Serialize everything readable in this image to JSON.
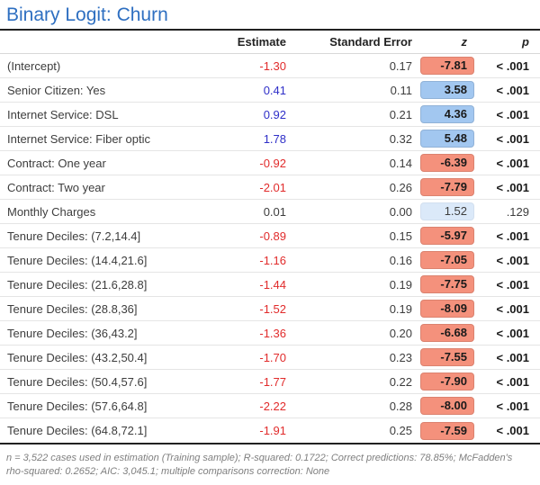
{
  "title": "Binary Logit: Churn",
  "columns": {
    "estimate": "Estimate",
    "standard_error": "Standard Error",
    "z": "z",
    "p": "p"
  },
  "rows": [
    {
      "label": "(Intercept)",
      "estimate": "-1.30",
      "est_tone": "neg",
      "se": "0.17",
      "z": "-7.81",
      "z_tone": "neg",
      "sig": true,
      "p": "< .001"
    },
    {
      "label": "Senior Citizen: Yes",
      "estimate": "0.41",
      "est_tone": "pos",
      "se": "0.11",
      "z": "3.58",
      "z_tone": "pos",
      "sig": true,
      "p": "< .001"
    },
    {
      "label": "Internet Service: DSL",
      "estimate": "0.92",
      "est_tone": "pos",
      "se": "0.21",
      "z": "4.36",
      "z_tone": "pos",
      "sig": true,
      "p": "< .001"
    },
    {
      "label": "Internet Service: Fiber optic",
      "estimate": "1.78",
      "est_tone": "pos",
      "se": "0.32",
      "z": "5.48",
      "z_tone": "pos",
      "sig": true,
      "p": "< .001"
    },
    {
      "label": "Contract: One year",
      "estimate": "-0.92",
      "est_tone": "neg",
      "se": "0.14",
      "z": "-6.39",
      "z_tone": "neg",
      "sig": true,
      "p": "< .001"
    },
    {
      "label": "Contract: Two year",
      "estimate": "-2.01",
      "est_tone": "neg",
      "se": "0.26",
      "z": "-7.79",
      "z_tone": "neg",
      "sig": true,
      "p": "< .001"
    },
    {
      "label": "Monthly Charges",
      "estimate": "0.01",
      "est_tone": "neutral",
      "se": "0.00",
      "z": "1.52",
      "z_tone": "weak",
      "sig": false,
      "p": ".129"
    },
    {
      "label": "Tenure Deciles: (7.2,14.4]",
      "estimate": "-0.89",
      "est_tone": "neg",
      "se": "0.15",
      "z": "-5.97",
      "z_tone": "neg",
      "sig": true,
      "p": "< .001"
    },
    {
      "label": "Tenure Deciles: (14.4,21.6]",
      "estimate": "-1.16",
      "est_tone": "neg",
      "se": "0.16",
      "z": "-7.05",
      "z_tone": "neg",
      "sig": true,
      "p": "< .001"
    },
    {
      "label": "Tenure Deciles: (21.6,28.8]",
      "estimate": "-1.44",
      "est_tone": "neg",
      "se": "0.19",
      "z": "-7.75",
      "z_tone": "neg",
      "sig": true,
      "p": "< .001"
    },
    {
      "label": "Tenure Deciles: (28.8,36]",
      "estimate": "-1.52",
      "est_tone": "neg",
      "se": "0.19",
      "z": "-8.09",
      "z_tone": "neg",
      "sig": true,
      "p": "< .001"
    },
    {
      "label": "Tenure Deciles: (36,43.2]",
      "estimate": "-1.36",
      "est_tone": "neg",
      "se": "0.20",
      "z": "-6.68",
      "z_tone": "neg",
      "sig": true,
      "p": "< .001"
    },
    {
      "label": "Tenure Deciles: (43.2,50.4]",
      "estimate": "-1.70",
      "est_tone": "neg",
      "se": "0.23",
      "z": "-7.55",
      "z_tone": "neg",
      "sig": true,
      "p": "< .001"
    },
    {
      "label": "Tenure Deciles: (50.4,57.6]",
      "estimate": "-1.77",
      "est_tone": "neg",
      "se": "0.22",
      "z": "-7.90",
      "z_tone": "neg",
      "sig": true,
      "p": "< .001"
    },
    {
      "label": "Tenure Deciles: (57.6,64.8]",
      "estimate": "-2.22",
      "est_tone": "neg",
      "se": "0.28",
      "z": "-8.00",
      "z_tone": "neg",
      "sig": true,
      "p": "< .001"
    },
    {
      "label": "Tenure Deciles: (64.8,72.1]",
      "estimate": "-1.91",
      "est_tone": "neg",
      "se": "0.25",
      "z": "-7.59",
      "z_tone": "neg",
      "sig": true,
      "p": "< .001"
    }
  ],
  "footnote": "n = 3,522 cases used in estimation (Training sample); R-squared: 0.1722; Correct predictions: 78.85%; McFadden's rho-squared: 0.2652; AIC: 3,045.1; multiple comparisons correction: None",
  "colors": {
    "title": "#2e6fc1",
    "estimate_negative": "#e12b2b",
    "estimate_positive": "#2f2fc8",
    "pill_negative": "#f4917c",
    "pill_positive": "#a2c7f0",
    "pill_weak": "#dbe9f9"
  }
}
